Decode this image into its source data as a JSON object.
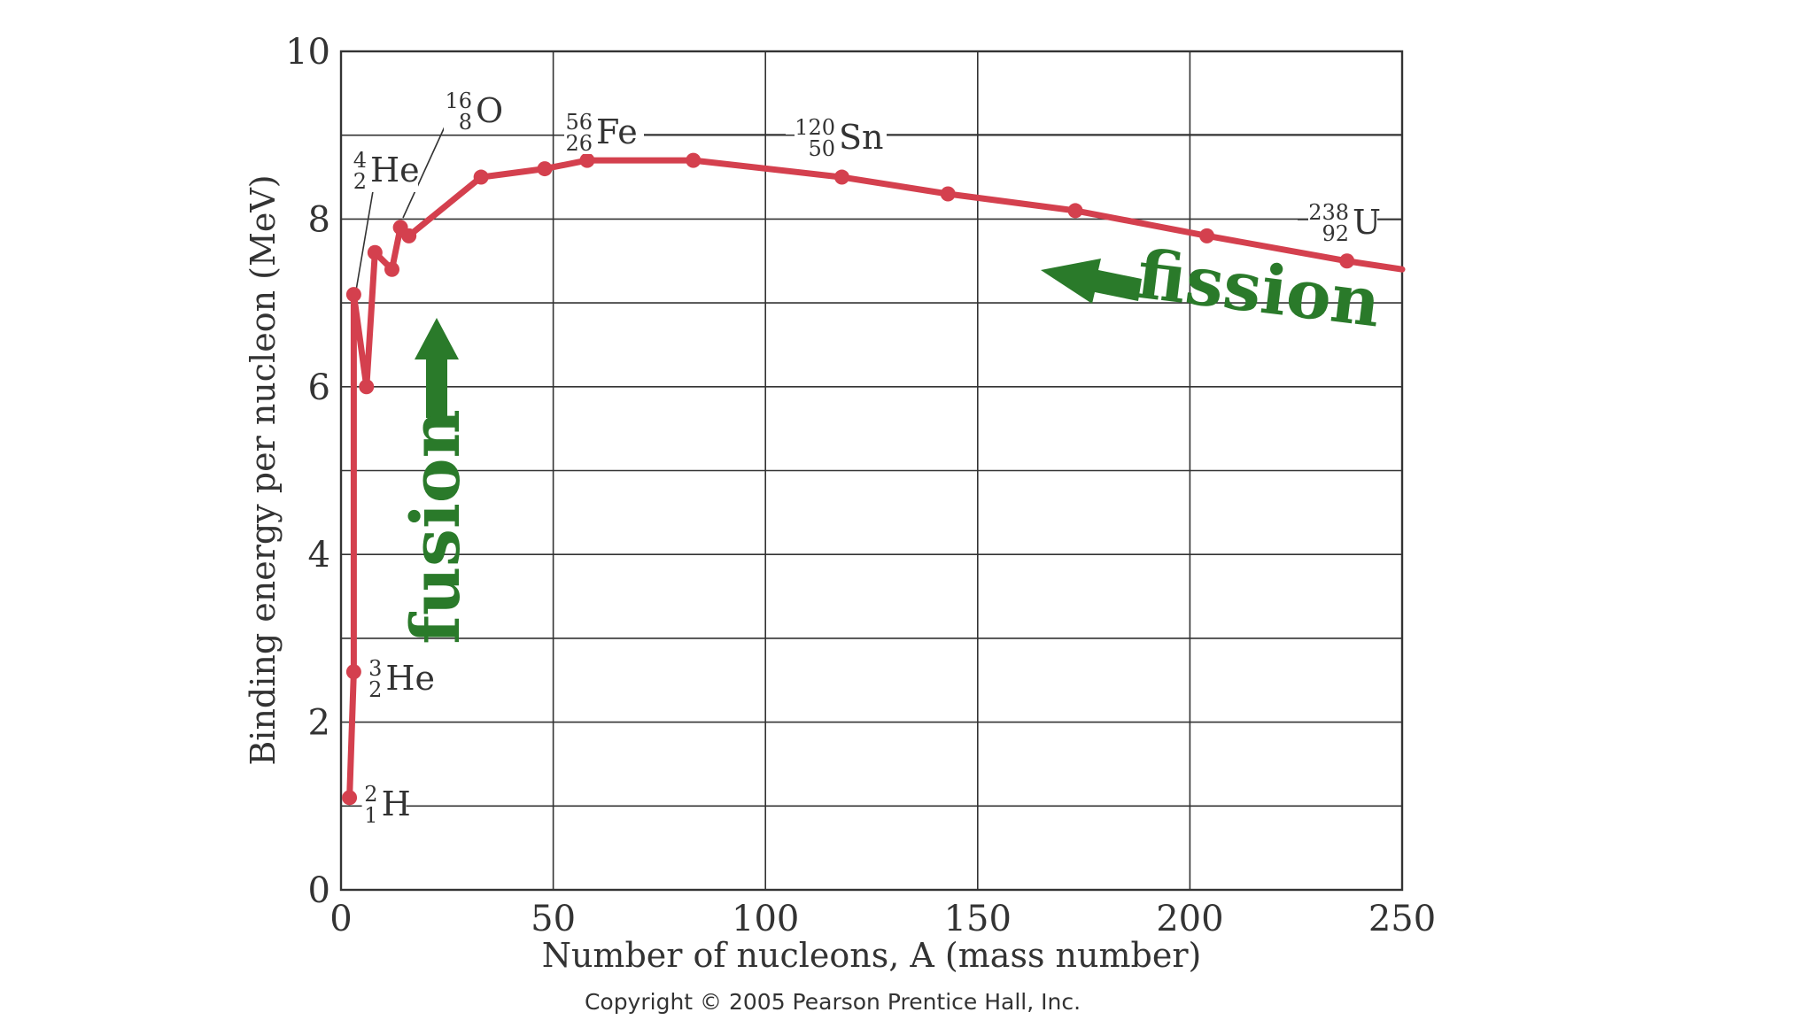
{
  "chart_data": {
    "type": "line",
    "xlabel": "Number of nucleons, A (mass number)",
    "ylabel": "Binding energy per nucleon (MeV)",
    "xlim": [
      0,
      250
    ],
    "ylim": [
      0,
      10
    ],
    "x_ticks": [
      "0",
      "50",
      "100",
      "150",
      "200",
      "250"
    ],
    "y_ticks": [
      "0",
      "2",
      "4",
      "6",
      "8",
      "10"
    ],
    "grid": true,
    "series": [
      {
        "points": [
          [
            2,
            1.1
          ],
          [
            3,
            2.6
          ],
          [
            3,
            7.1
          ],
          [
            6,
            6.0
          ],
          [
            8,
            7.6
          ],
          [
            12,
            7.4
          ],
          [
            14,
            7.9
          ],
          [
            16,
            7.8
          ],
          [
            33,
            8.5
          ],
          [
            48,
            8.6
          ],
          [
            58,
            8.7
          ],
          [
            83,
            8.7
          ],
          [
            118,
            8.5
          ],
          [
            143,
            8.3
          ],
          [
            173,
            8.1
          ],
          [
            204,
            7.8
          ],
          [
            237,
            7.5
          ],
          [
            250,
            7.4
          ]
        ]
      }
    ],
    "annotations": [
      {
        "sup": "2",
        "sub": "1",
        "symbol": "H",
        "x": 2,
        "y": 1.1
      },
      {
        "sup": "3",
        "sub": "2",
        "symbol": "He",
        "x": 3,
        "y": 2.6
      },
      {
        "sup": "4",
        "sub": "2",
        "symbol": "He",
        "x": 3,
        "y": 7.1
      },
      {
        "sup": "16",
        "sub": "8",
        "symbol": "O",
        "x": 14,
        "y": 7.9
      },
      {
        "sup": "56",
        "sub": "26",
        "symbol": "Fe",
        "x": 58,
        "y": 8.7
      },
      {
        "sup": "120",
        "sub": "50",
        "symbol": "Sn",
        "x": 118,
        "y": 8.5
      },
      {
        "sup": "238",
        "sub": "92",
        "symbol": "U",
        "x": 237,
        "y": 7.5
      }
    ],
    "fusion_label": "fusion",
    "fission_label": "fission",
    "colors": {
      "curve": "#d4404e",
      "arrows": "#2a7a2a"
    }
  },
  "copyright": "Copyright © 2005 Pearson Prentice Hall, Inc."
}
